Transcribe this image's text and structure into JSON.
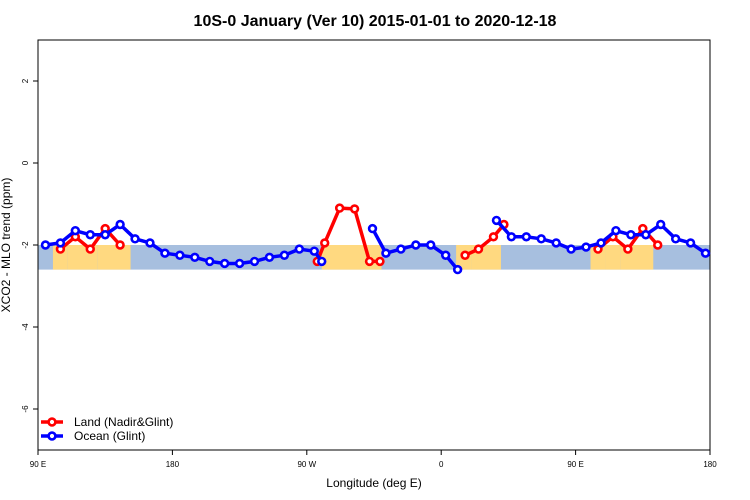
{
  "chart_data": {
    "type": "line",
    "title": "10S-0 January (Ver 10)   2015-01-01 to 2020-12-18",
    "xlabel": "Longitude (deg E)",
    "ylabel": "XCO2 - MLO trend (ppm)",
    "xlim": [
      90,
      540
    ],
    "ylim": [
      -7,
      3
    ],
    "x_ticks": [
      {
        "value": 90,
        "label": "90 E"
      },
      {
        "value": 180,
        "label": "180"
      },
      {
        "value": 270,
        "label": "90 W"
      },
      {
        "value": 360,
        "label": "0"
      },
      {
        "value": 450,
        "label": "90 E"
      },
      {
        "value": 540,
        "label": "180"
      }
    ],
    "y_ticks": [
      2,
      0,
      -2,
      -4,
      -6
    ],
    "grid": false,
    "legend_position": "bottom-left",
    "latitude_band": {
      "ymin": -2.6,
      "ymax": -2.0
    },
    "land_spans_x": [
      [
        100,
        110
      ],
      [
        110,
        130
      ],
      [
        130,
        152
      ],
      [
        280,
        320
      ],
      [
        370,
        380
      ],
      [
        380,
        400
      ],
      [
        460,
        470
      ],
      [
        470,
        480
      ],
      [
        480,
        502
      ]
    ],
    "series": [
      {
        "name": "Land (Nadir&Glint)",
        "color": "#ff0000",
        "segments": [
          [
            [
              105,
              -2.1
            ],
            [
              115,
              -1.8
            ],
            [
              125,
              -2.1
            ],
            [
              135,
              -1.6
            ],
            [
              145,
              -2.0
            ]
          ],
          [
            [
              277,
              -2.4
            ],
            [
              282,
              -1.95
            ],
            [
              292,
              -1.1
            ],
            [
              302,
              -1.12
            ],
            [
              312,
              -2.4
            ],
            [
              319,
              -2.4
            ]
          ],
          [
            [
              376,
              -2.25
            ],
            [
              385,
              -2.1
            ],
            [
              395,
              -1.8
            ],
            [
              402,
              -1.5
            ]
          ],
          [
            [
              465,
              -2.1
            ],
            [
              475,
              -1.8
            ],
            [
              485,
              -2.1
            ],
            [
              495,
              -1.6
            ],
            [
              505,
              -2.0
            ]
          ]
        ]
      },
      {
        "name": "Ocean (Glint)",
        "color": "#0000ff",
        "segments": [
          [
            [
              95,
              -2.0
            ],
            [
              105,
              -1.95
            ],
            [
              115,
              -1.65
            ],
            [
              125,
              -1.75
            ],
            [
              135,
              -1.75
            ],
            [
              145,
              -1.5
            ],
            [
              155,
              -1.85
            ],
            [
              165,
              -1.95
            ],
            [
              175,
              -2.2
            ],
            [
              185,
              -2.25
            ],
            [
              195,
              -2.3
            ],
            [
              205,
              -2.4
            ],
            [
              215,
              -2.45
            ],
            [
              225,
              -2.45
            ],
            [
              235,
              -2.4
            ],
            [
              245,
              -2.3
            ],
            [
              255,
              -2.25
            ],
            [
              265,
              -2.1
            ],
            [
              275,
              -2.15
            ],
            [
              280,
              -2.4
            ]
          ],
          [
            [
              314,
              -1.6
            ],
            [
              323,
              -2.2
            ],
            [
              333,
              -2.1
            ],
            [
              343,
              -2.0
            ],
            [
              353,
              -2.0
            ],
            [
              363,
              -2.25
            ],
            [
              371,
              -2.6
            ]
          ],
          [
            [
              397,
              -1.4
            ],
            [
              407,
              -1.8
            ],
            [
              417,
              -1.8
            ],
            [
              427,
              -1.85
            ],
            [
              437,
              -1.95
            ],
            [
              447,
              -2.1
            ],
            [
              457,
              -2.05
            ],
            [
              467,
              -1.95
            ],
            [
              477,
              -1.65
            ],
            [
              487,
              -1.75
            ],
            [
              497,
              -1.75
            ],
            [
              507,
              -1.5
            ],
            [
              517,
              -1.85
            ],
            [
              527,
              -1.95
            ],
            [
              537,
              -2.2
            ]
          ]
        ]
      }
    ]
  },
  "colors": {
    "ocean_band": "#a7bfdf",
    "land_band": "#ffd980",
    "land_series": "#ff0000",
    "ocean_series": "#0000ff"
  }
}
